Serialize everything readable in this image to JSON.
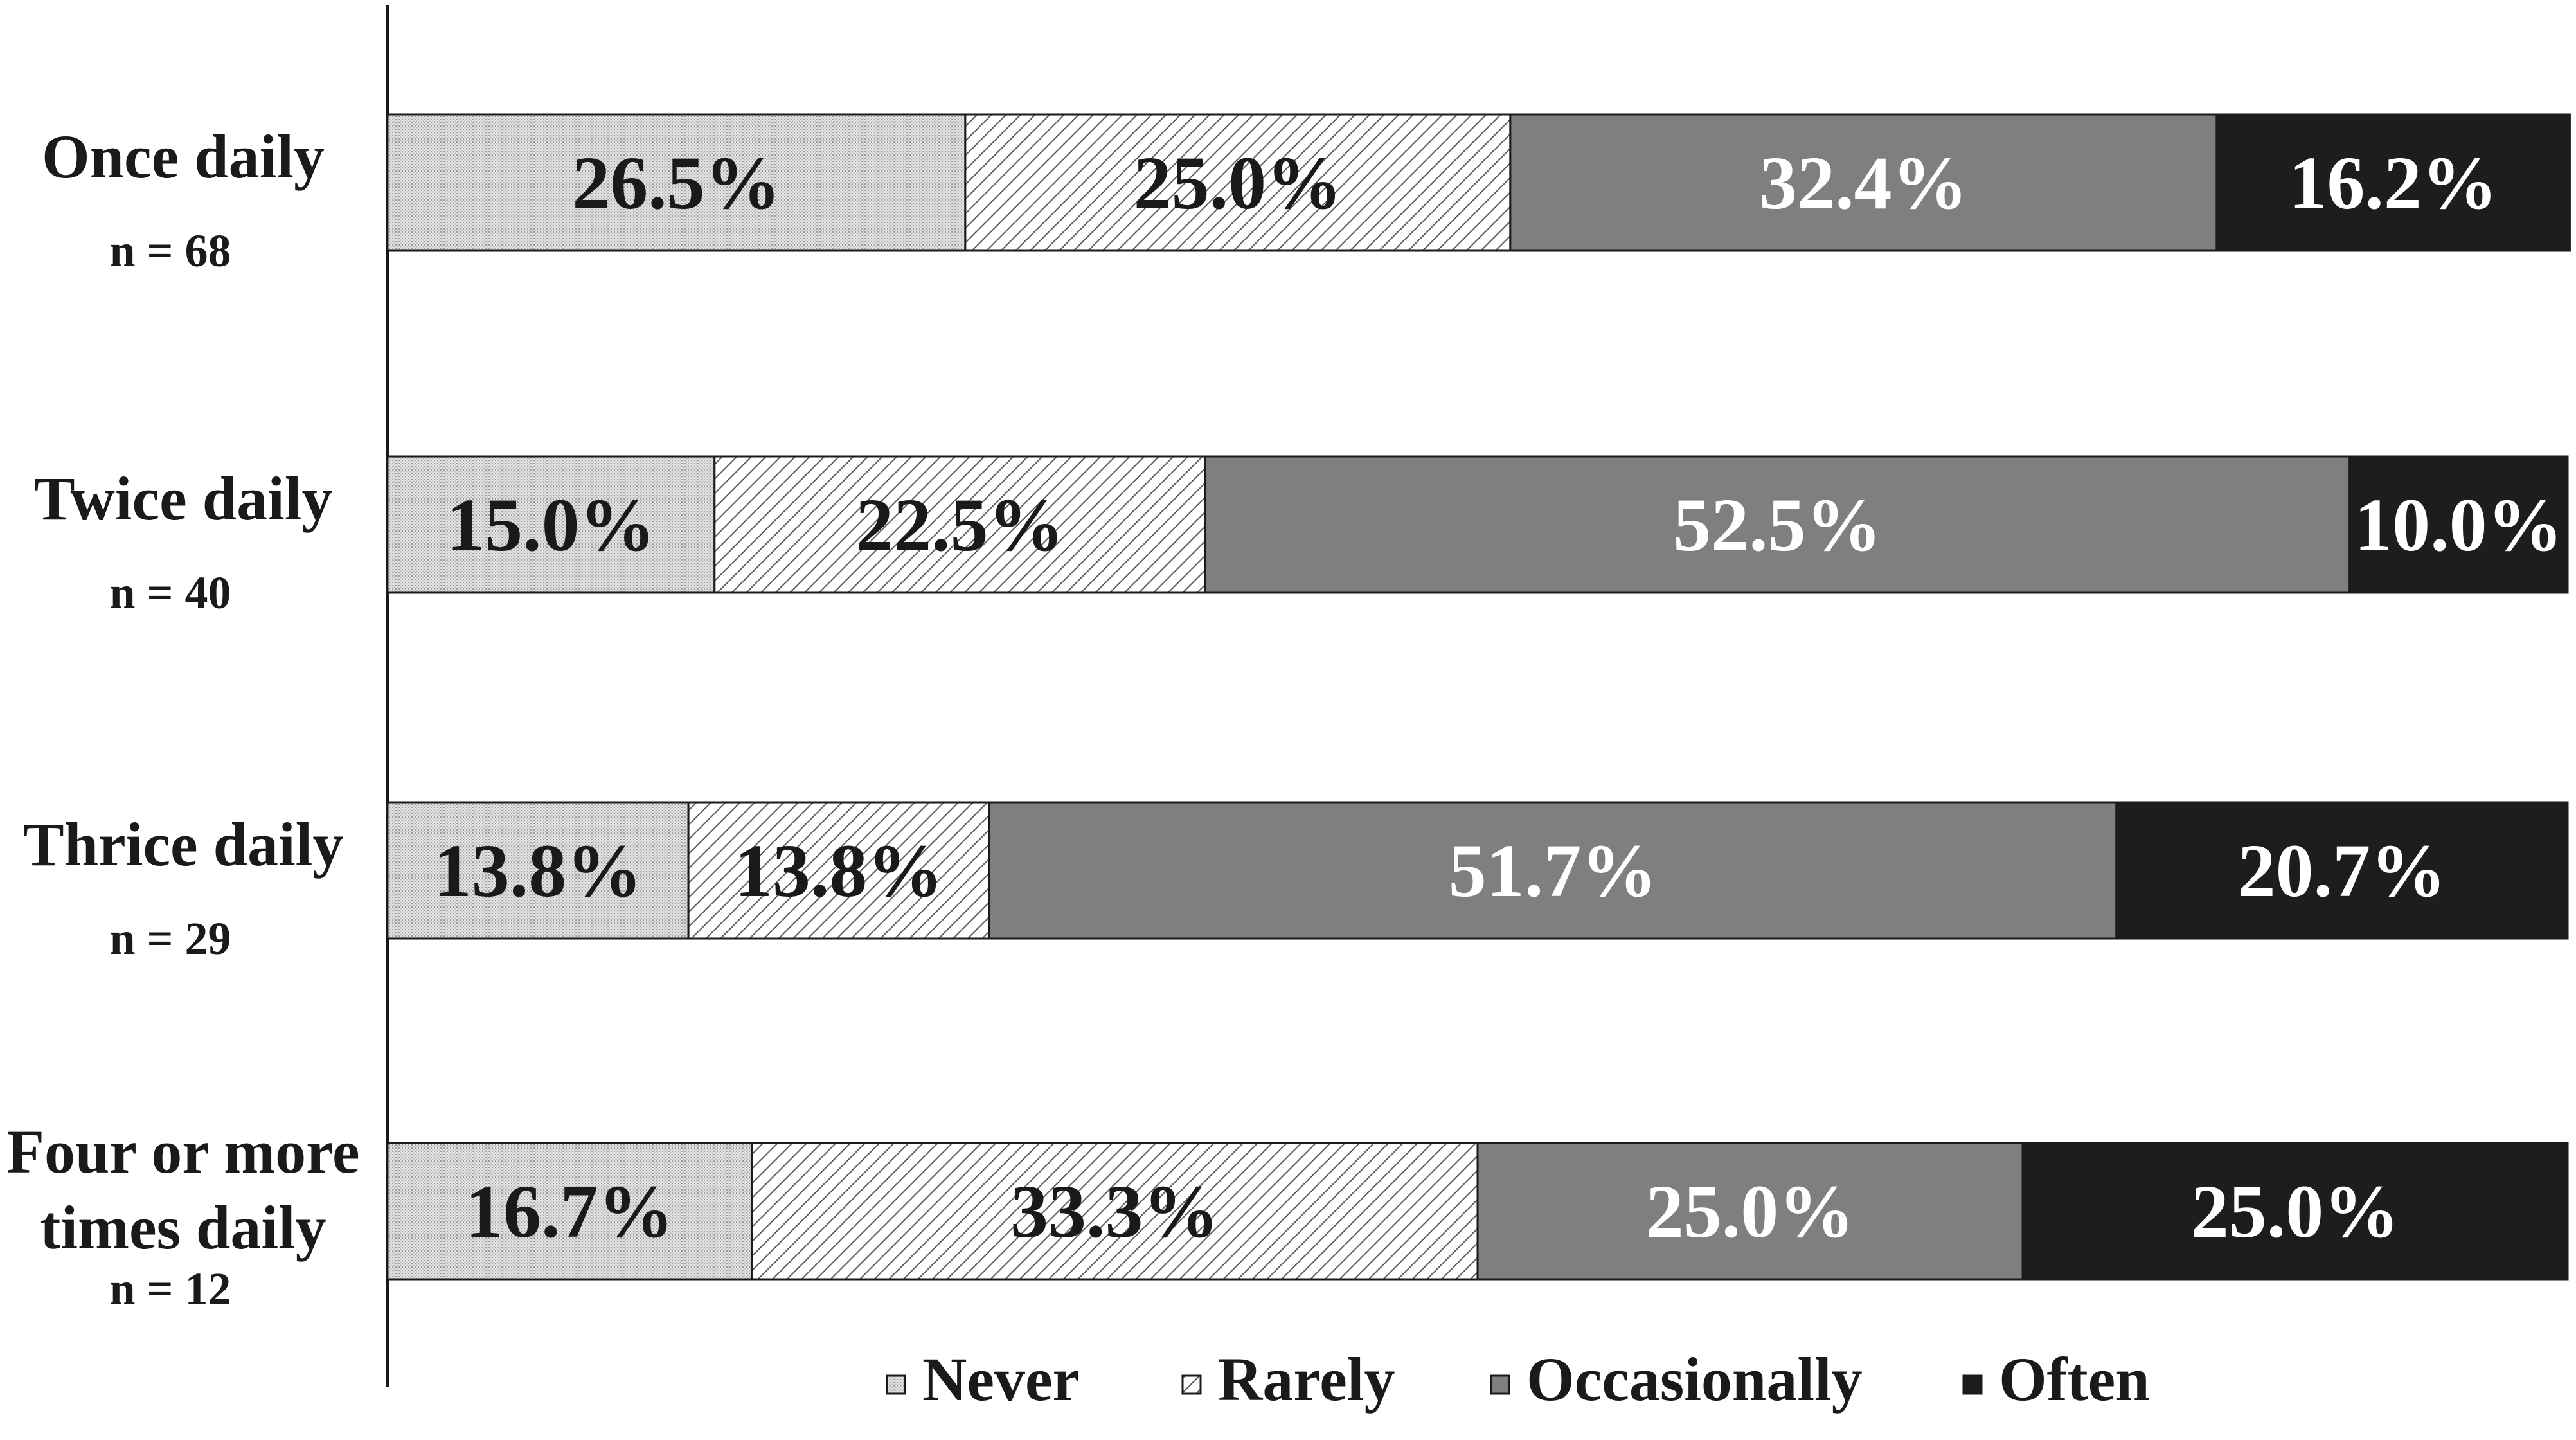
{
  "chart_data": {
    "type": "bar",
    "orientation": "horizontal",
    "stacked": true,
    "categories": [
      {
        "lines": [
          "Once daily"
        ],
        "n_label": "n = 68"
      },
      {
        "lines": [
          "Twice daily"
        ],
        "n_label": "n = 40"
      },
      {
        "lines": [
          "Thrice daily"
        ],
        "n_label": "n = 29"
      },
      {
        "lines": [
          "Four or more",
          "times daily"
        ],
        "n_label": "n = 12"
      }
    ],
    "series": [
      {
        "name": "Never",
        "values": [
          26.5,
          15.0,
          13.8,
          16.7
        ],
        "labels": [
          "26.5%",
          "15.0%",
          "13.8%",
          "16.7%"
        ],
        "pattern": "dotted",
        "color": "#d9d9d9",
        "label_color": "#1a1a1a"
      },
      {
        "name": "Rarely",
        "values": [
          25.0,
          22.5,
          13.8,
          33.3
        ],
        "labels": [
          "25.0%",
          "22.5%",
          "13.8%",
          "33.3%"
        ],
        "pattern": "diagonal-hatch",
        "color": "#ffffff",
        "label_color": "#1a1a1a"
      },
      {
        "name": "Occasionally",
        "values": [
          32.4,
          52.5,
          51.7,
          25.0
        ],
        "labels": [
          "32.4%",
          "52.5%",
          "51.7%",
          "25.0%"
        ],
        "pattern": "solid",
        "color": "#7f7f7f",
        "label_color": "#ffffff"
      },
      {
        "name": "Often",
        "values": [
          16.2,
          10.0,
          20.7,
          25.0
        ],
        "labels": [
          "16.2%",
          "10.0%",
          "20.7%",
          "25.0%"
        ],
        "pattern": "solid",
        "color": "#1e1c1c",
        "label_color": "#ffffff"
      }
    ],
    "xlim": [
      0,
      100
    ],
    "grid": false,
    "legend_position": "bottom",
    "title": "",
    "xlabel": "",
    "ylabel": ""
  }
}
